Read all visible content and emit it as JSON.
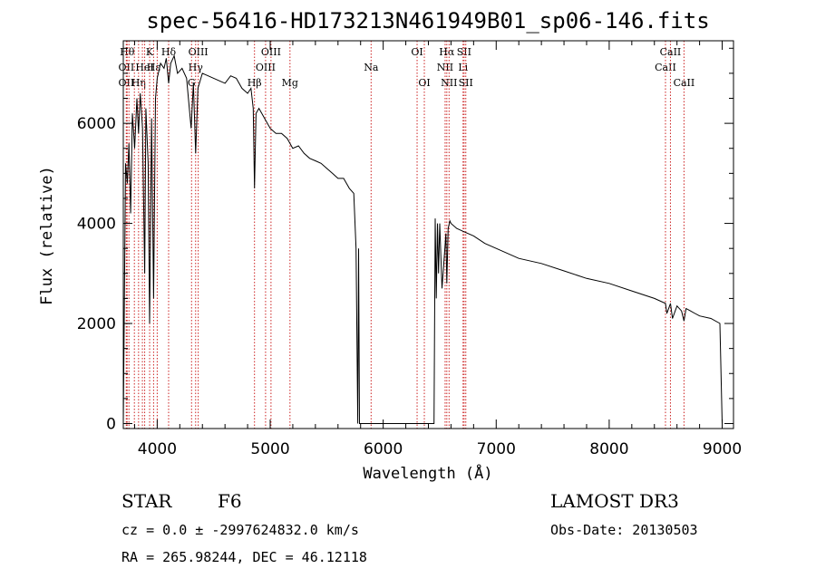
{
  "chart_data": {
    "type": "line",
    "title": "spec-56416-HD173213N461949B01_sp06-146.fits",
    "xlabel": "Wavelength (Å)",
    "ylabel": "Flux (relative)",
    "xlim": [
      3700,
      9100
    ],
    "ylim": [
      -100,
      7650
    ],
    "xticks": [
      4000,
      5000,
      6000,
      7000,
      8000,
      9000
    ],
    "yticks": [
      0,
      2000,
      4000,
      6000
    ],
    "grid": false,
    "line_color": "#000000",
    "marker_color": "#cc2222",
    "series": [
      {
        "x": [
          3700,
          3720,
          3735,
          3750,
          3765,
          3780,
          3800,
          3820,
          3835,
          3850,
          3870,
          3889,
          3900,
          3920,
          3933,
          3950,
          3968,
          3985,
          4000,
          4030,
          4060,
          4080,
          4101,
          4120,
          4150,
          4180,
          4220,
          4260,
          4300,
          4320,
          4340,
          4360,
          4400,
          4450,
          4500,
          4550,
          4600,
          4650,
          4700,
          4750,
          4800,
          4830,
          4850,
          4861,
          4875,
          4900,
          4950,
          5000,
          5050,
          5100,
          5150,
          5200,
          5250,
          5300,
          5350,
          5400,
          5450,
          5500,
          5550,
          5600,
          5650,
          5700,
          5740,
          5760,
          5775,
          5782,
          5790,
          5800,
          6400,
          6450,
          6460,
          6470,
          6480,
          6490,
          6500,
          6520,
          6540,
          6555,
          6563,
          6575,
          6590,
          6600,
          6650,
          6700,
          6800,
          6900,
          7000,
          7200,
          7400,
          7600,
          7800,
          8000,
          8200,
          8400,
          8498,
          8510,
          8542,
          8560,
          8600,
          8640,
          8662,
          8680,
          8720,
          8760,
          8800,
          8900,
          8980,
          9000
        ],
        "y": [
          0,
          5200,
          4800,
          5600,
          4200,
          6200,
          5500,
          6500,
          5800,
          6600,
          5900,
          3000,
          6300,
          5200,
          2000,
          6100,
          2500,
          6500,
          6900,
          7200,
          7100,
          7300,
          6800,
          7200,
          7350,
          7000,
          7100,
          6900,
          5900,
          6800,
          5400,
          6700,
          7000,
          6950,
          6900,
          6850,
          6800,
          6950,
          6900,
          6700,
          6600,
          6700,
          6300,
          4700,
          6200,
          6300,
          6100,
          5900,
          5800,
          5800,
          5700,
          5500,
          5550,
          5400,
          5300,
          5250,
          5200,
          5100,
          5000,
          4900,
          4900,
          4700,
          4600,
          3500,
          0,
          3500,
          0,
          0,
          0,
          0,
          4100,
          2500,
          4000,
          3000,
          4000,
          2700,
          3300,
          3800,
          2800,
          3900,
          4050,
          4000,
          3900,
          3850,
          3750,
          3600,
          3500,
          3300,
          3200,
          3050,
          2900,
          2800,
          2650,
          2500,
          2400,
          2200,
          2400,
          2100,
          2350,
          2250,
          2050,
          2300,
          2250,
          2200,
          2150,
          2100,
          2000,
          0
        ]
      }
    ],
    "line_markers": [
      {
        "x": 3734,
        "label": "Hθ",
        "row": 0
      },
      {
        "x": 3727,
        "label": "OII",
        "row": 1
      },
      {
        "x": 3727,
        "label": "OII",
        "row": 2
      },
      {
        "x": 3750,
        "label": "",
        "row": -1
      },
      {
        "x": 3798,
        "label": "",
        "row": -1
      },
      {
        "x": 3835,
        "label": "Hη",
        "row": 2
      },
      {
        "x": 3869,
        "label": "",
        "row": -1
      },
      {
        "x": 3889,
        "label": "HeI",
        "row": 1
      },
      {
        "x": 3933,
        "label": "K",
        "row": 0
      },
      {
        "x": 3968,
        "label": "Hε",
        "row": 1
      },
      {
        "x": 4101,
        "label": "Hδ",
        "row": 0
      },
      {
        "x": 4000,
        "label": "",
        "row": -1
      },
      {
        "x": 4340,
        "label": "Hγ",
        "row": 1
      },
      {
        "x": 4304,
        "label": "G",
        "row": 2
      },
      {
        "x": 4363,
        "label": "OIII",
        "row": 0
      },
      {
        "x": 4861,
        "label": "Hβ",
        "row": 2
      },
      {
        "x": 4959,
        "label": "OIII",
        "row": 1
      },
      {
        "x": 5007,
        "label": "OIII",
        "row": 0
      },
      {
        "x": 5175,
        "label": "Mg",
        "row": 2
      },
      {
        "x": 5893,
        "label": "Na",
        "row": 1
      },
      {
        "x": 6300,
        "label": "OI",
        "row": 0
      },
      {
        "x": 6364,
        "label": "OI",
        "row": 2
      },
      {
        "x": 6548,
        "label": "NII",
        "row": 1
      },
      {
        "x": 6563,
        "label": "Hα",
        "row": 0
      },
      {
        "x": 6583,
        "label": "NII",
        "row": 2
      },
      {
        "x": 6707,
        "label": "Li",
        "row": 1
      },
      {
        "x": 6716,
        "label": "SII",
        "row": 0
      },
      {
        "x": 6731,
        "label": "SII",
        "row": 2
      },
      {
        "x": 8498,
        "label": "CaII",
        "row": 1
      },
      {
        "x": 8542,
        "label": "CaII",
        "row": 0
      },
      {
        "x": 8662,
        "label": "CaII",
        "row": 2
      }
    ]
  },
  "info": {
    "object_class": "STAR",
    "subclass": "F6",
    "survey": "LAMOST DR3",
    "redshift_line": "cz = 0.0 ± -2997624832.0 km/s",
    "obs_date": "Obs-Date: 20130503",
    "coords": "RA = 265.98244, DEC =  46.12118"
  }
}
